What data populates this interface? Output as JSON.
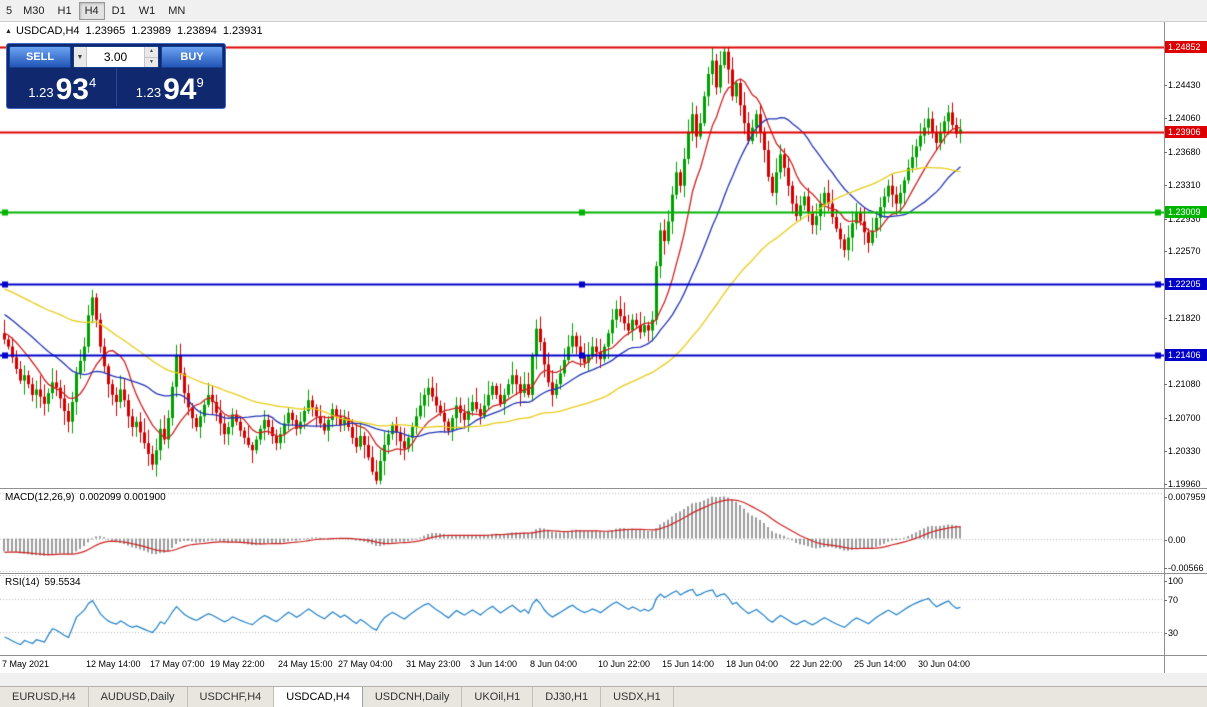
{
  "toolbar": {
    "timeframes": [
      {
        "label": "5"
      },
      {
        "label": "M30"
      },
      {
        "label": "H1"
      },
      {
        "label": "H4",
        "active": true
      },
      {
        "label": "D1"
      },
      {
        "label": "W1"
      },
      {
        "label": "MN"
      }
    ]
  },
  "chart": {
    "header": {
      "symbol": "USDCAD,H4",
      "open": "1.23965",
      "high": "1.23989",
      "low": "1.23894",
      "close": "1.23931"
    },
    "trade_panel": {
      "sell_label": "SELL",
      "buy_label": "BUY",
      "volume": "3.00",
      "bid": {
        "prefix": "1.23",
        "big": "93",
        "sup": "4"
      },
      "ask": {
        "prefix": "1.23",
        "big": "94",
        "sup": "9"
      }
    },
    "price_scale": {
      "labels": [
        {
          "text": "1.24430",
          "value": 1.2443
        },
        {
          "text": "1.24060",
          "value": 1.2406
        },
        {
          "text": "1.23680",
          "value": 1.2368
        },
        {
          "text": "1.23310",
          "value": 1.2331
        },
        {
          "text": "1.22930",
          "value": 1.2293
        },
        {
          "text": "1.22570",
          "value": 1.2257
        },
        {
          "text": "1.21820",
          "value": 1.2182
        },
        {
          "text": "1.21080",
          "value": 1.2108
        },
        {
          "text": "1.20700",
          "value": 1.207
        },
        {
          "text": "1.20330",
          "value": 1.2033
        },
        {
          "text": "1.19960",
          "value": 1.1996
        }
      ]
    },
    "levels": [
      {
        "label": "1.24852",
        "value": 1.24852,
        "color": "#dd0000",
        "text_color": "#ffffff",
        "handles": false
      },
      {
        "label": "1.23906",
        "value": 1.23906,
        "color": "#dd0000",
        "text_color": "#ffffff",
        "handles": false
      },
      {
        "label": "1.23009",
        "value": 1.23009,
        "color": "#00b400",
        "text_color": "#ffffff",
        "handles": true
      },
      {
        "label": "1.22205",
        "value": 1.22205,
        "color": "#0000c8",
        "text_color": "#ffffff",
        "handles": true
      },
      {
        "label": "1.21406",
        "value": 1.21406,
        "color": "#0000c8",
        "text_color": "#ffffff",
        "handles": true
      }
    ]
  },
  "chart_data": {
    "type": "candlestick",
    "symbol": "USDCAD",
    "timeframe": "H4",
    "y_min": 1.19918,
    "y_max": 1.25132,
    "bar_spacing": 4,
    "up_color": "#00a000",
    "down_color": "#d40000",
    "pre_closes": [
      1.2312,
      1.2304,
      1.2296,
      1.229,
      1.2282,
      1.2276,
      1.227,
      1.2262,
      1.2256,
      1.225,
      1.2244,
      1.2236,
      1.223,
      1.2224,
      1.2218,
      1.2212,
      1.2206,
      1.22,
      1.2196,
      1.2204,
      1.2196,
      1.2188,
      1.2194,
      1.2186,
      1.218,
      1.2186,
      1.2178,
      1.2172,
      1.2178,
      1.217,
      1.2164,
      1.217,
      1.2162,
      1.2156,
      1.2162,
      1.2158
    ],
    "first_open": 1.2165,
    "closes": [
      1.2158,
      1.215,
      1.2138,
      1.2125,
      1.2112,
      1.2118,
      1.2108,
      1.2096,
      1.2102,
      1.2094,
      1.2086,
      1.2098,
      1.211,
      1.2104,
      1.2092,
      1.2078,
      1.2066,
      1.2088,
      1.212,
      1.2134,
      1.215,
      1.2185,
      1.2205,
      1.218,
      1.215,
      1.2128,
      1.2108,
      1.2096,
      1.2088,
      1.2102,
      1.209,
      1.2072,
      1.206,
      1.2066,
      1.2054,
      1.2042,
      1.203,
      1.2018,
      1.2034,
      1.2058,
      1.2046,
      1.207,
      1.2105,
      1.214,
      1.212,
      1.2098,
      1.2082,
      1.207,
      1.206,
      1.2072,
      1.2085,
      1.2096,
      1.2088,
      1.2076,
      1.2064,
      1.2052,
      1.206,
      1.2074,
      1.2066,
      1.2056,
      1.2048,
      1.204,
      1.2034,
      1.2046,
      1.2058,
      1.2068,
      1.206,
      1.205,
      1.2042,
      1.2052,
      1.2064,
      1.2076,
      1.2068,
      1.2058,
      1.2066,
      1.2078,
      1.209,
      1.2082,
      1.2072,
      1.2064,
      1.2056,
      1.2068,
      1.208,
      1.2072,
      1.2062,
      1.207,
      1.206,
      1.2048,
      1.2038,
      1.205,
      1.204,
      1.2026,
      1.201,
      1.2,
      1.2022,
      1.204,
      1.2052,
      1.2062,
      1.2054,
      1.2044,
      1.2036,
      1.2048,
      1.206,
      1.2072,
      1.2084,
      1.2096,
      1.2104,
      1.2094,
      1.2084,
      1.2076,
      1.2066,
      1.2056,
      1.207,
      1.2084,
      1.2076,
      1.2068,
      1.2078,
      1.2088,
      1.208,
      1.2072,
      1.2084,
      1.2096,
      1.2106,
      1.2096,
      1.2086,
      1.2096,
      1.2108,
      1.2118,
      1.2108,
      1.2098,
      1.2108,
      1.2096,
      1.214,
      1.217,
      1.2155,
      1.213,
      1.211,
      1.2096,
      1.2108,
      1.212,
      1.2135,
      1.215,
      1.2162,
      1.215,
      1.214,
      1.2132,
      1.214,
      1.215,
      1.2144,
      1.2136,
      1.215,
      1.2165,
      1.218,
      1.2192,
      1.2184,
      1.2176,
      1.2168,
      1.218,
      1.2174,
      1.2166,
      1.2174,
      1.2168,
      1.218,
      1.224,
      1.228,
      1.2268,
      1.229,
      1.232,
      1.2345,
      1.233,
      1.236,
      1.239,
      1.241,
      1.2385,
      1.24,
      1.243,
      1.2455,
      1.247,
      1.244,
      1.2465,
      1.248,
      1.246,
      1.243,
      1.2445,
      1.242,
      1.24,
      1.238,
      1.2395,
      1.241,
      1.239,
      1.237,
      1.234,
      1.2322,
      1.2345,
      1.2365,
      1.235,
      1.233,
      1.231,
      1.2296,
      1.2308,
      1.2318,
      1.23,
      1.2286,
      1.2296,
      1.231,
      1.2322,
      1.231,
      1.2295,
      1.2282,
      1.227,
      1.2258,
      1.2272,
      1.2288,
      1.23,
      1.229,
      1.2278,
      1.2266,
      1.228,
      1.2294,
      1.2306,
      1.2318,
      1.233,
      1.232,
      1.231,
      1.2322,
      1.2336,
      1.235,
      1.2362,
      1.2374,
      1.2386,
      1.2395,
      1.2405,
      1.239,
      1.2378,
      1.239,
      1.2402,
      1.2412,
      1.2398,
      1.2388,
      1.2393
    ],
    "overlays": [
      {
        "name": "ma-fast",
        "type": "sma",
        "period": 10,
        "color": "#cc2222"
      },
      {
        "name": "ma-mid",
        "type": "sma",
        "period": 25,
        "color": "#2335b4"
      },
      {
        "name": "ma-slow",
        "type": "sma",
        "period": 60,
        "color": "#e8cc18"
      }
    ]
  },
  "macd": {
    "label": "MACD(12,26,9)",
    "values_text": "0.002099 0.001900",
    "fast": 12,
    "slow": 26,
    "signal": 9,
    "scale_labels": [
      {
        "text": "0.007959",
        "value": 0.007959
      },
      {
        "text": "0.00",
        "value": 0
      },
      {
        "text": "-0.00566",
        "value": -0.00566
      }
    ],
    "y_min": -0.0062,
    "y_max": 0.0085,
    "hist_color": "#9c9c9c",
    "signal_color": "#cc2222"
  },
  "rsi": {
    "label": "RSI(14)",
    "value_text": "59.5534",
    "period": 14,
    "scale_labels": [
      {
        "text": "100",
        "value": 100
      },
      {
        "text": "70",
        "value": 70
      },
      {
        "text": "30",
        "value": 30
      }
    ],
    "y_min": 0,
    "y_max": 100,
    "color": "#2080c8"
  },
  "time_axis": {
    "labels": [
      {
        "text": "7 May 2021",
        "bar": 0
      },
      {
        "text": "12 May 14:00",
        "bar": 21
      },
      {
        "text": "17 May 07:00",
        "bar": 37
      },
      {
        "text": "19 May 22:00",
        "bar": 52
      },
      {
        "text": "24 May 15:00",
        "bar": 69
      },
      {
        "text": "27 May 04:00",
        "bar": 84
      },
      {
        "text": "31 May 23:00",
        "bar": 101
      },
      {
        "text": "3 Jun 14:00",
        "bar": 117
      },
      {
        "text": "8 Jun 04:00",
        "bar": 132
      },
      {
        "text": "10 Jun 22:00",
        "bar": 149
      },
      {
        "text": "15 Jun 14:00",
        "bar": 165
      },
      {
        "text": "18 Jun 04:00",
        "bar": 181
      },
      {
        "text": "22 Jun 22:00",
        "bar": 197
      },
      {
        "text": "25 Jun 14:00",
        "bar": 213
      },
      {
        "text": "30 Jun 04:00",
        "bar": 229
      }
    ]
  },
  "tabbar": {
    "tabs": [
      {
        "label": "EURUSD,H4"
      },
      {
        "label": "AUDUSD,Daily"
      },
      {
        "label": "USDCHF,H4"
      },
      {
        "label": "USDCAD,H4",
        "active": true
      },
      {
        "label": "USDCNH,Daily"
      },
      {
        "label": "UKOil,H1"
      },
      {
        "label": "DJ30,H1"
      },
      {
        "label": "USDX,H1"
      }
    ]
  }
}
